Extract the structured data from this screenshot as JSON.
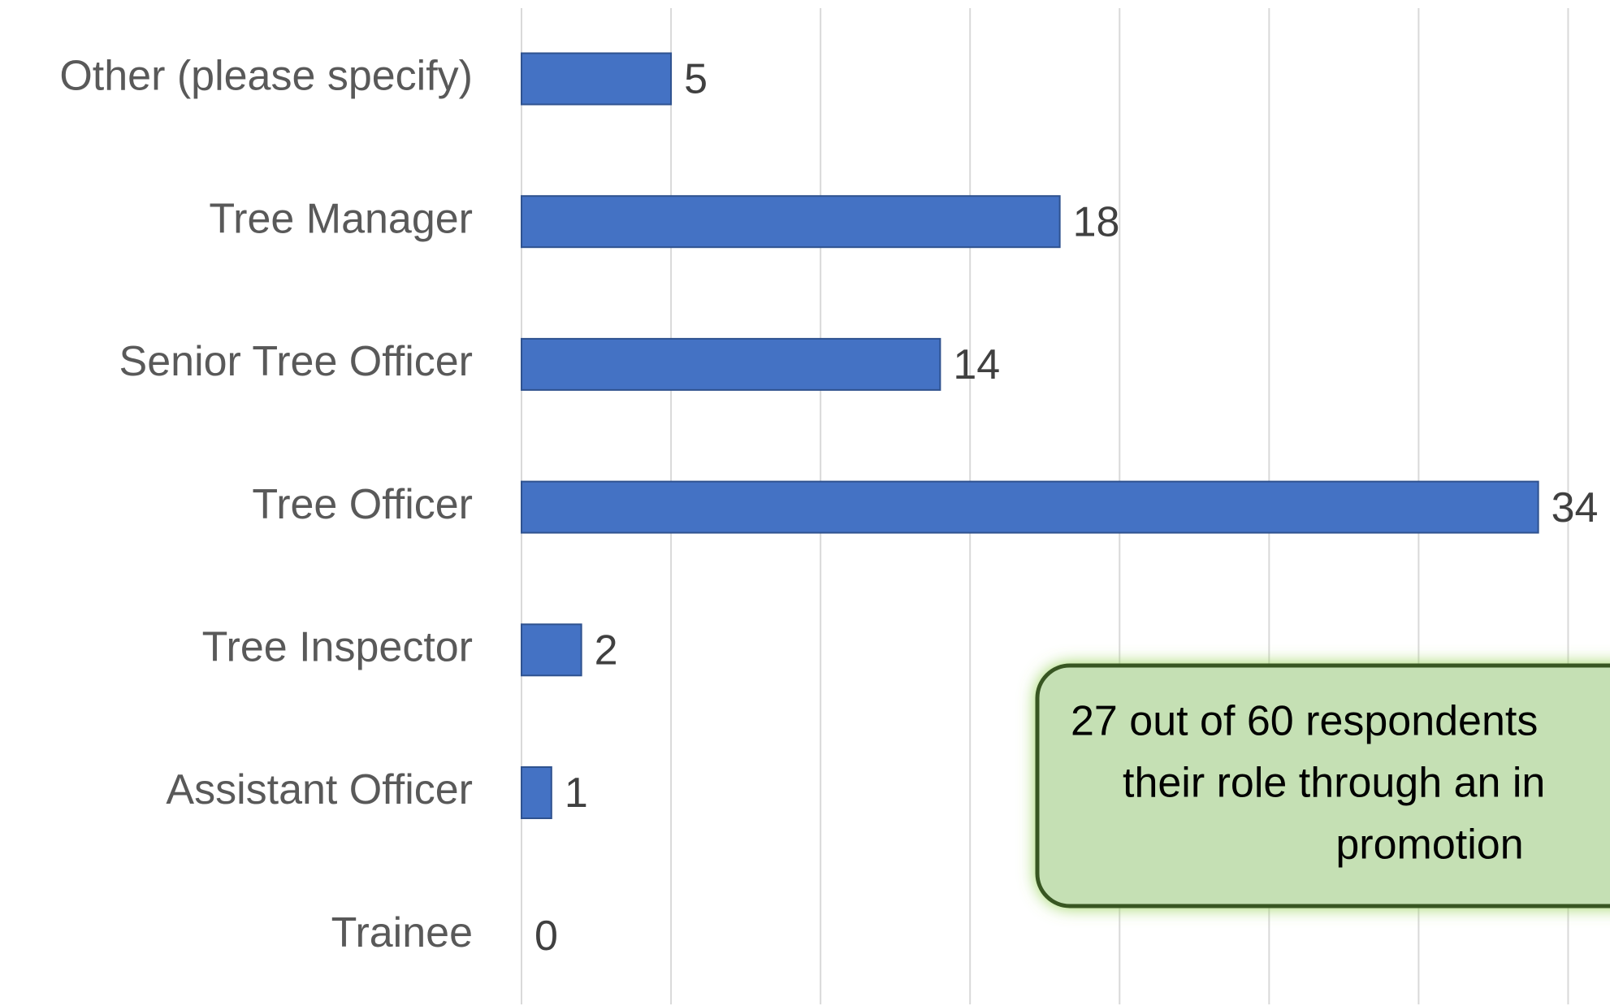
{
  "chart_data": {
    "type": "barh",
    "categories": [
      "Other (please specify)",
      "Tree Manager",
      "Senior Tree Officer",
      "Tree Officer",
      "Tree Inspector",
      "Assistant Officer",
      "Trainee"
    ],
    "values": [
      5,
      18,
      14,
      34,
      2,
      1,
      0
    ],
    "color": "#4472c4",
    "xlim": [
      0,
      36.4
    ],
    "xticks": [
      0,
      5,
      10,
      15,
      20,
      25,
      30,
      35
    ],
    "grid": true,
    "annotation": [
      "27 out of 60 respondents",
      "their role through an in",
      "promotion"
    ]
  }
}
